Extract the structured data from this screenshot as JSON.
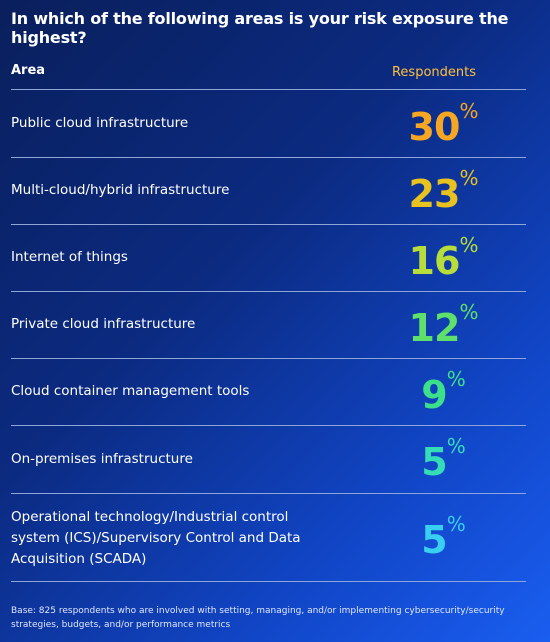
{
  "header": {
    "title": "In which of the following areas is your risk exposure the highest?"
  },
  "table": {
    "columns": [
      "Area",
      "Respondents"
    ],
    "unit": "%",
    "rows": [
      {
        "area": "Public cloud infrastructure",
        "value": 30,
        "color": "#f5a623"
      },
      {
        "area": "Multi-cloud/hybrid infrastructure",
        "value": 23,
        "color": "#e8c21f"
      },
      {
        "area": "Internet of things",
        "value": 16,
        "color": "#b6dd3a"
      },
      {
        "area": "Private cloud infrastructure",
        "value": 12,
        "color": "#5fe06a"
      },
      {
        "area": "Cloud container management tools",
        "value": 9,
        "color": "#3de08a"
      },
      {
        "area": "On-premises infrastructure",
        "value": 5,
        "color": "#36dcb8"
      },
      {
        "area": "Operational technology/Industrial control system (ICS)/Supervisory Control and Data Acquisition (SCADA)",
        "value": 5,
        "color": "#38cff0"
      }
    ]
  },
  "footnote": "Base: 825 respondents who are involved with setting, managing, and/or implementing cybersecurity/security strategies, budgets, and/or performance metrics"
}
